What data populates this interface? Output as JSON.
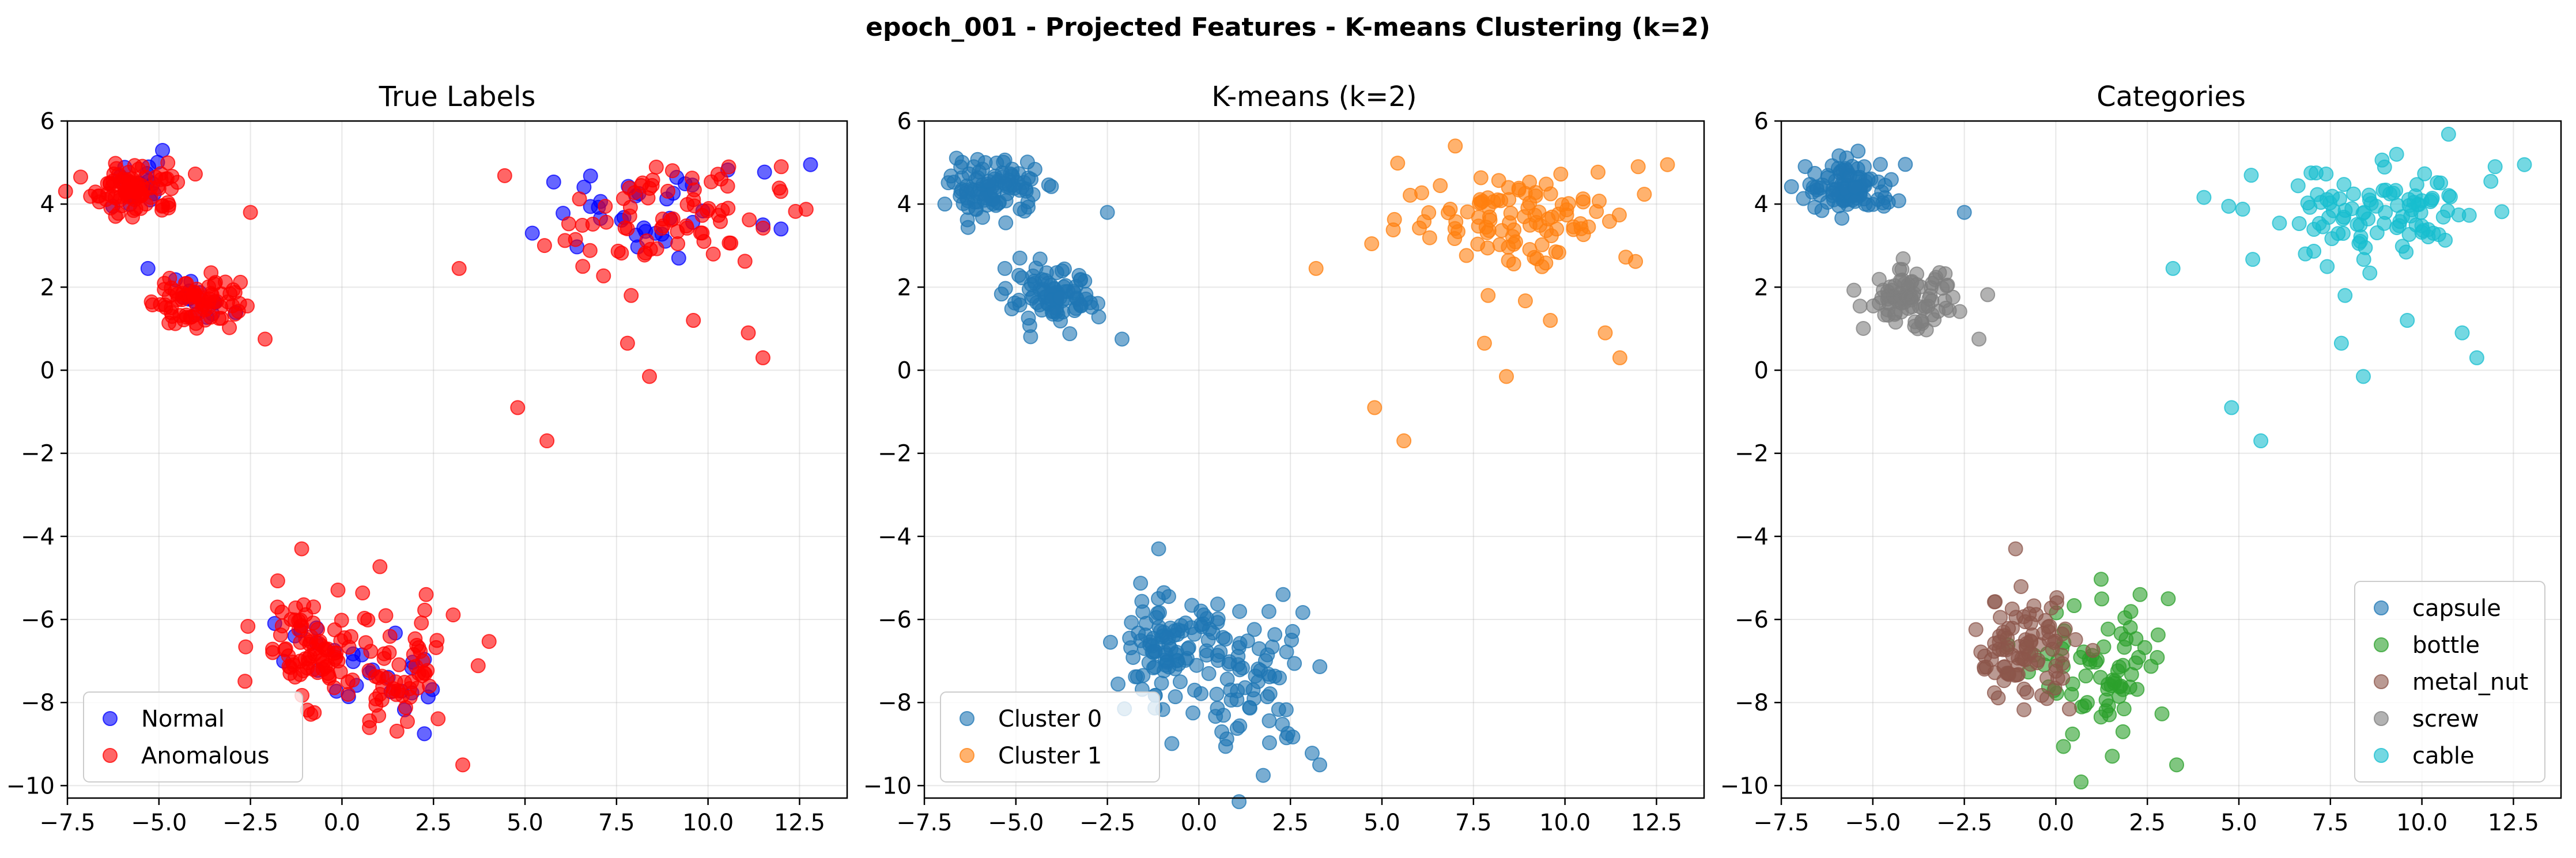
{
  "title": "epoch_001 - Projected Features - K-means Clustering (k=2)",
  "chart_data": [
    {
      "type": "scatter",
      "title": "True Labels",
      "xlim": [
        -7.5,
        13.8
      ],
      "ylim": [
        -10.3,
        6.0
      ],
      "xticks": [
        -7.5,
        -5.0,
        -2.5,
        0.0,
        2.5,
        5.0,
        7.5,
        10.0,
        12.5
      ],
      "xtick_labels": [
        "−7.5",
        "−5.0",
        "−2.5",
        "0.0",
        "2.5",
        "5.0",
        "7.5",
        "10.0",
        "12.5"
      ],
      "yticks": [
        -10,
        -8,
        -6,
        -4,
        -2,
        0,
        2,
        4,
        6
      ],
      "ytick_labels": [
        "−10",
        "−8",
        "−6",
        "−4",
        "−2",
        "0",
        "2",
        "4",
        "6"
      ],
      "grid": true,
      "legend": "lower-left",
      "series": [
        {
          "name": "Normal",
          "color": "#0000ff",
          "clusters": [
            {
              "cx": -5.5,
              "cy": 4.4,
              "sx": 0.6,
              "sy": 0.3,
              "n": 18
            },
            {
              "cx": -4.0,
              "cy": 1.7,
              "sx": 0.5,
              "sy": 0.3,
              "n": 14
            },
            {
              "cx": 8.5,
              "cy": 3.8,
              "sx": 1.5,
              "sy": 0.5,
              "n": 32
            },
            {
              "cx": -0.8,
              "cy": -6.8,
              "sx": 0.6,
              "sy": 0.5,
              "n": 12
            },
            {
              "cx": 1.6,
              "cy": -7.6,
              "sx": 0.7,
              "sy": 0.6,
              "n": 16
            }
          ],
          "points": [
            [
              -5.3,
              2.45
            ],
            [
              12.8,
              4.95
            ],
            [
              11.5,
              3.5
            ],
            [
              9.2,
              2.7
            ],
            [
              5.2,
              3.3
            ]
          ]
        },
        {
          "name": "Anomalous",
          "color": "#ff0000",
          "clusters": [
            {
              "cx": -5.6,
              "cy": 4.35,
              "sx": 0.6,
              "sy": 0.32,
              "n": 85
            },
            {
              "cx": -4.0,
              "cy": 1.7,
              "sx": 0.6,
              "sy": 0.35,
              "n": 75
            },
            {
              "cx": 8.8,
              "cy": 3.7,
              "sx": 1.6,
              "sy": 0.6,
              "n": 75
            },
            {
              "cx": -0.9,
              "cy": -6.7,
              "sx": 0.7,
              "sy": 0.6,
              "n": 85
            },
            {
              "cx": 1.4,
              "cy": -7.4,
              "sx": 0.9,
              "sy": 0.9,
              "n": 60
            }
          ],
          "points": [
            [
              4.8,
              -0.9
            ],
            [
              5.6,
              -1.7
            ],
            [
              7.8,
              0.65
            ],
            [
              8.4,
              -0.15
            ],
            [
              11.5,
              0.3
            ],
            [
              11.1,
              0.9
            ],
            [
              9.6,
              1.2
            ],
            [
              7.9,
              1.8
            ],
            [
              3.2,
              2.45
            ],
            [
              12.0,
              4.9
            ],
            [
              3.3,
              -9.5
            ],
            [
              -2.5,
              3.8
            ],
            [
              -2.1,
              0.75
            ],
            [
              -1.1,
              -4.3
            ],
            [
              2.3,
              -5.4
            ]
          ]
        }
      ]
    },
    {
      "type": "scatter",
      "title": "K-means (k=2)",
      "xlim": [
        -7.5,
        13.8
      ],
      "ylim": [
        -10.3,
        6.0
      ],
      "xticks": [
        -7.5,
        -5.0,
        -2.5,
        0.0,
        2.5,
        5.0,
        7.5,
        10.0,
        12.5
      ],
      "xtick_labels": [
        "−7.5",
        "−5.0",
        "−2.5",
        "0.0",
        "2.5",
        "5.0",
        "7.5",
        "10.0",
        "12.5"
      ],
      "yticks": [
        -10,
        -8,
        -6,
        -4,
        -2,
        0,
        2,
        4,
        6
      ],
      "ytick_labels": [
        "−10",
        "−8",
        "−6",
        "−4",
        "−2",
        "0",
        "2",
        "4",
        "6"
      ],
      "grid": true,
      "legend": "lower-left",
      "series": [
        {
          "name": "Cluster 0",
          "color": "#1f77b4",
          "clusters": [
            {
              "cx": -5.6,
              "cy": 4.4,
              "sx": 0.6,
              "sy": 0.32,
              "n": 100
            },
            {
              "cx": -4.0,
              "cy": 1.7,
              "sx": 0.6,
              "sy": 0.35,
              "n": 88
            },
            {
              "cx": -0.9,
              "cy": -6.7,
              "sx": 0.7,
              "sy": 0.6,
              "n": 95
            },
            {
              "cx": 1.4,
              "cy": -7.4,
              "sx": 0.9,
              "sy": 0.9,
              "n": 75
            }
          ],
          "points": [
            [
              -5.3,
              2.45
            ],
            [
              -2.5,
              3.8
            ],
            [
              -2.1,
              0.75
            ],
            [
              -1.1,
              -4.3
            ],
            [
              2.3,
              -5.4
            ],
            [
              3.3,
              -9.5
            ]
          ]
        },
        {
          "name": "Cluster 1",
          "color": "#ff7f0e",
          "clusters": [
            {
              "cx": 8.8,
              "cy": 3.7,
              "sx": 1.6,
              "sy": 0.6,
              "n": 105
            }
          ],
          "points": [
            [
              4.8,
              -0.9
            ],
            [
              5.6,
              -1.7
            ],
            [
              7.8,
              0.65
            ],
            [
              8.4,
              -0.15
            ],
            [
              11.5,
              0.3
            ],
            [
              11.1,
              0.9
            ],
            [
              9.6,
              1.2
            ],
            [
              7.9,
              1.8
            ],
            [
              3.2,
              2.45
            ],
            [
              12.0,
              4.9
            ],
            [
              12.8,
              4.95
            ]
          ]
        }
      ]
    },
    {
      "type": "scatter",
      "title": "Categories",
      "xlim": [
        -7.5,
        13.8
      ],
      "ylim": [
        -10.3,
        6.0
      ],
      "xticks": [
        -7.5,
        -5.0,
        -2.5,
        0.0,
        2.5,
        5.0,
        7.5,
        10.0,
        12.5
      ],
      "xtick_labels": [
        "−7.5",
        "−5.0",
        "−2.5",
        "0.0",
        "2.5",
        "5.0",
        "7.5",
        "10.0",
        "12.5"
      ],
      "yticks": [
        -10,
        -8,
        -6,
        -4,
        -2,
        0,
        2,
        4,
        6
      ],
      "ytick_labels": [
        "−10",
        "−8",
        "−6",
        "−4",
        "−2",
        "0",
        "2",
        "4",
        "6"
      ],
      "grid": true,
      "legend": "lower-right",
      "series": [
        {
          "name": "capsule",
          "color": "#1f77b4",
          "clusters": [
            {
              "cx": -5.6,
              "cy": 4.4,
              "sx": 0.6,
              "sy": 0.32,
              "n": 100
            }
          ],
          "points": [
            [
              -2.5,
              3.8
            ]
          ]
        },
        {
          "name": "bottle",
          "color": "#2ca02c",
          "clusters": [
            {
              "cx": 1.4,
              "cy": -7.4,
              "sx": 0.9,
              "sy": 0.9,
              "n": 75
            }
          ],
          "points": [
            [
              2.3,
              -5.4
            ],
            [
              3.3,
              -9.5
            ]
          ]
        },
        {
          "name": "metal_nut",
          "color": "#8c564b",
          "clusters": [
            {
              "cx": -0.9,
              "cy": -6.7,
              "sx": 0.7,
              "sy": 0.6,
              "n": 95
            }
          ],
          "points": [
            [
              -1.1,
              -4.3
            ]
          ]
        },
        {
          "name": "screw",
          "color": "#7f7f7f",
          "clusters": [
            {
              "cx": -4.0,
              "cy": 1.7,
              "sx": 0.6,
              "sy": 0.35,
              "n": 88
            }
          ],
          "points": [
            [
              -2.1,
              0.75
            ]
          ]
        },
        {
          "name": "cable",
          "color": "#17becf",
          "clusters": [
            {
              "cx": 8.8,
              "cy": 3.7,
              "sx": 1.6,
              "sy": 0.6,
              "n": 105
            }
          ],
          "points": [
            [
              4.8,
              -0.9
            ],
            [
              5.6,
              -1.7
            ],
            [
              7.8,
              0.65
            ],
            [
              8.4,
              -0.15
            ],
            [
              11.5,
              0.3
            ],
            [
              11.1,
              0.9
            ],
            [
              9.6,
              1.2
            ],
            [
              7.9,
              1.8
            ],
            [
              3.2,
              2.45
            ],
            [
              12.0,
              4.9
            ],
            [
              12.8,
              4.95
            ]
          ]
        }
      ]
    }
  ]
}
